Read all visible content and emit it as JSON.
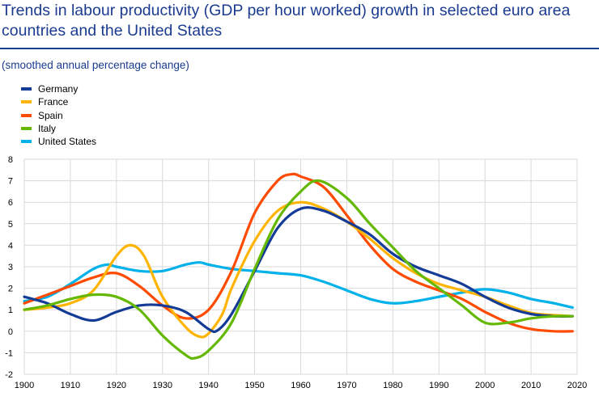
{
  "header": {
    "title": "Trends in labour productivity (GDP per hour worked) growth in selected euro area countries and the United States",
    "subtitle": "(smoothed annual percentage change)"
  },
  "chart_data": {
    "type": "line",
    "title": "Trends in labour productivity (GDP per hour worked) growth in selected euro area countries and the United States",
    "subtitle": "(smoothed annual percentage change)",
    "xlabel": "",
    "ylabel": "",
    "xlim": [
      1900,
      2020
    ],
    "ylim": [
      -2,
      8
    ],
    "x_ticks": [
      1900,
      1910,
      1920,
      1930,
      1940,
      1950,
      1960,
      1970,
      1980,
      1990,
      2000,
      2010,
      2020
    ],
    "y_ticks": [
      -2,
      -1,
      0,
      1,
      2,
      3,
      4,
      5,
      6,
      7,
      8
    ],
    "grid": true,
    "legend_position": "top-left",
    "series": [
      {
        "name": "Germany",
        "color": "#143c96",
        "x": [
          1900,
          1905,
          1910,
          1915,
          1920,
          1925,
          1930,
          1935,
          1940,
          1942,
          1945,
          1950,
          1955,
          1960,
          1965,
          1970,
          1975,
          1980,
          1985,
          1990,
          1995,
          2000,
          2005,
          2010,
          2015,
          2019
        ],
        "y": [
          1.6,
          1.3,
          0.8,
          0.5,
          0.9,
          1.2,
          1.2,
          0.9,
          0.1,
          0.05,
          0.8,
          2.8,
          4.8,
          5.7,
          5.6,
          5.1,
          4.5,
          3.6,
          3.0,
          2.6,
          2.2,
          1.6,
          1.1,
          0.8,
          0.7,
          0.7
        ]
      },
      {
        "name": "France",
        "color": "#ffb400",
        "x": [
          1900,
          1905,
          1910,
          1915,
          1920,
          1923,
          1926,
          1930,
          1935,
          1938,
          1940,
          1943,
          1945,
          1950,
          1955,
          1960,
          1965,
          1970,
          1975,
          1980,
          1985,
          1990,
          1995,
          2000,
          2005,
          2010,
          2015,
          2019
        ],
        "y": [
          1.0,
          1.1,
          1.3,
          1.9,
          3.5,
          4.0,
          3.5,
          1.6,
          0.2,
          -0.25,
          -0.1,
          0.8,
          2.0,
          4.2,
          5.6,
          6.0,
          5.7,
          5.1,
          4.3,
          3.4,
          2.7,
          2.2,
          1.9,
          1.6,
          1.2,
          0.85,
          0.75,
          0.7
        ]
      },
      {
        "name": "Spain",
        "color": "#ff4b00",
        "x": [
          1900,
          1905,
          1910,
          1915,
          1920,
          1925,
          1930,
          1935,
          1940,
          1945,
          1950,
          1955,
          1958,
          1960,
          1965,
          1970,
          1975,
          1980,
          1985,
          1990,
          1995,
          2000,
          2005,
          2010,
          2015,
          2019
        ],
        "y": [
          1.3,
          1.7,
          2.1,
          2.5,
          2.7,
          2.1,
          1.2,
          0.6,
          1.0,
          2.8,
          5.5,
          7.0,
          7.3,
          7.2,
          6.7,
          5.4,
          4.0,
          2.9,
          2.3,
          1.9,
          1.5,
          0.9,
          0.4,
          0.1,
          0.0,
          0.0
        ]
      },
      {
        "name": "Italy",
        "color": "#65b800",
        "x": [
          1900,
          1905,
          1910,
          1915,
          1920,
          1925,
          1930,
          1935,
          1937,
          1940,
          1945,
          1950,
          1955,
          1960,
          1964,
          1970,
          1975,
          1980,
          1985,
          1990,
          1995,
          2000,
          2005,
          2010,
          2015,
          2019
        ],
        "y": [
          1.0,
          1.2,
          1.5,
          1.7,
          1.6,
          1.0,
          -0.2,
          -1.1,
          -1.25,
          -0.9,
          0.4,
          2.9,
          5.2,
          6.5,
          7.0,
          6.2,
          5.0,
          3.9,
          2.8,
          2.0,
          1.2,
          0.4,
          0.4,
          0.6,
          0.7,
          0.7
        ]
      },
      {
        "name": "United States",
        "color": "#00b1ea",
        "x": [
          1900,
          1905,
          1910,
          1915,
          1918,
          1920,
          1925,
          1930,
          1935,
          1938,
          1940,
          1945,
          1950,
          1955,
          1960,
          1965,
          1970,
          1975,
          1980,
          1985,
          1990,
          1995,
          2000,
          2005,
          2010,
          2015,
          2019
        ],
        "y": [
          1.4,
          1.6,
          2.2,
          2.9,
          3.1,
          3.0,
          2.8,
          2.8,
          3.1,
          3.2,
          3.1,
          2.9,
          2.8,
          2.7,
          2.6,
          2.3,
          1.9,
          1.5,
          1.3,
          1.4,
          1.6,
          1.8,
          1.95,
          1.8,
          1.5,
          1.3,
          1.1
        ]
      }
    ]
  }
}
